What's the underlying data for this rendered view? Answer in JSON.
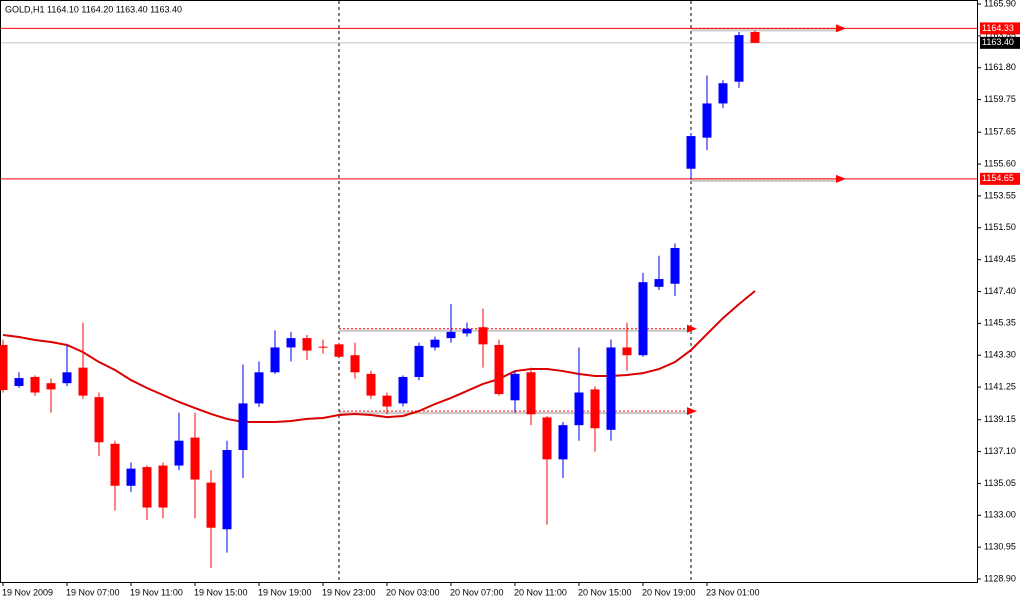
{
  "chart_data": {
    "type": "candlestick",
    "title": "GOLD,H1  1164.10 1164.20 1163.40 1163.40",
    "categories": [
      "19 Nov 2009",
      null,
      null,
      null,
      "19 Nov 07:00",
      null,
      null,
      null,
      "19 Nov 11:00",
      null,
      null,
      null,
      "19 Nov 15:00",
      null,
      null,
      null,
      "19 Nov 19:00",
      null,
      null,
      null,
      "19 Nov 23:00",
      null,
      null,
      null,
      "20 Nov 03:00",
      null,
      null,
      null,
      "20 Nov 07:00",
      null,
      null,
      null,
      "20 Nov 11:00",
      null,
      null,
      null,
      "20 Nov 15:00",
      null,
      null,
      null,
      "20 Nov 19:00",
      null,
      null,
      null,
      "23 Nov 01:00",
      null,
      null,
      null
    ],
    "open": [
      1143.96,
      1141.32,
      1141.9,
      1141.5,
      1141.5,
      1142.5,
      1140.6,
      1137.6,
      1134.9,
      1136.1,
      1136.2,
      1136.2,
      1138.0,
      1135.1,
      1132.1,
      1137.2,
      1140.2,
      1142.2,
      1143.8,
      1144.4,
      1143.85,
      1144.0,
      1143.3,
      1142.1,
      1140.7,
      1140.2,
      1141.9,
      1143.8,
      1144.4,
      1144.7,
      1145.1,
      1143.96,
      1140.4,
      1142.2,
      1139.3,
      1136.6,
      1138.8,
      1141.1,
      1138.5,
      1143.8,
      1143.3,
      1147.7,
      1147.9,
      1155.3,
      1157.3,
      1159.5,
      1160.9,
      1164.1
    ],
    "high": [
      1144.3,
      1142.2,
      1142.0,
      1141.8,
      1143.96,
      1145.4,
      1140.9,
      1137.8,
      1136.4,
      1136.2,
      1136.4,
      1139.6,
      1139.6,
      1135.9,
      1137.8,
      1142.7,
      1142.9,
      1144.9,
      1144.8,
      1144.6,
      1144.3,
      1144.1,
      1144.1,
      1142.3,
      1140.9,
      1142.0,
      1144.1,
      1144.5,
      1146.6,
      1145.4,
      1146.3,
      1144.3,
      1142.3,
      1142.5,
      1139.4,
      1139.0,
      1143.8,
      1141.3,
      1144.3,
      1145.4,
      1148.6,
      1149.7,
      1150.5,
      1157.6,
      1161.3,
      1161.0,
      1164.1,
      1164.2
    ],
    "low": [
      1140.9,
      1141.2,
      1140.7,
      1139.6,
      1141.3,
      1140.5,
      1136.8,
      1133.3,
      1134.5,
      1132.7,
      1132.8,
      1135.9,
      1132.8,
      1129.6,
      1130.6,
      1135.4,
      1139.97,
      1142.1,
      1142.9,
      1143.0,
      1143.4,
      1143.2,
      1141.8,
      1140.5,
      1139.5,
      1140.0,
      1141.7,
      1143.6,
      1144.1,
      1144.5,
      1142.5,
      1140.7,
      1139.6,
      1138.8,
      1132.4,
      1135.4,
      1137.8,
      1137.1,
      1137.8,
      1142.3,
      1143.2,
      1147.5,
      1147.1,
      1154.6,
      1156.5,
      1159.2,
      1160.5,
      1163.4
    ],
    "close": [
      1141.06,
      1141.83,
      1140.9,
      1141.1,
      1142.2,
      1140.7,
      1137.7,
      1134.9,
      1136.0,
      1133.5,
      1133.5,
      1137.8,
      1135.3,
      1132.2,
      1137.2,
      1140.2,
      1142.2,
      1143.8,
      1144.4,
      1143.6,
      1143.8,
      1143.2,
      1142.2,
      1140.7,
      1140.0,
      1141.9,
      1143.9,
      1144.3,
      1144.8,
      1145.0,
      1144.0,
      1140.8,
      1142.1,
      1139.5,
      1136.6,
      1138.8,
      1140.9,
      1138.6,
      1143.8,
      1143.3,
      1148.0,
      1148.2,
      1150.2,
      1157.4,
      1159.5,
      1160.8,
      1163.9,
      1163.4
    ],
    "up_color": "#0000ff",
    "down_color": "#ff0000",
    "ma": {
      "color": "#dd0000",
      "values": [
        1144.6,
        1144.47,
        1144.28,
        1144.15,
        1143.96,
        1143.5,
        1142.86,
        1142.35,
        1141.7,
        1141.19,
        1140.74,
        1140.29,
        1139.9,
        1139.52,
        1139.2,
        1139.0,
        1139.0,
        1139.0,
        1139.07,
        1139.2,
        1139.26,
        1139.45,
        1139.52,
        1139.45,
        1139.32,
        1139.39,
        1139.71,
        1140.16,
        1140.55,
        1141.0,
        1141.45,
        1141.77,
        1142.28,
        1142.41,
        1142.41,
        1142.28,
        1142.09,
        1141.96,
        1141.96,
        1142.03,
        1142.15,
        1142.41,
        1142.86,
        1143.63,
        1144.66,
        1145.69,
        1146.59,
        1147.43
      ]
    },
    "levels": {
      "values": [
        1164.33,
        1163.4,
        1154.65
      ],
      "value_labels": [
        "1164.33",
        "1163.40",
        "1154.65"
      ],
      "colors": [
        "#ff0000",
        "#c0c0c0",
        "#ff0000"
      ]
    },
    "arrows": {
      "values": [
        1164.33,
        1154.65,
        1145.0,
        1139.7
      ],
      "color": "#ff0000"
    },
    "ylim": [
      1128.9,
      1165.9
    ],
    "yticks": [
      {
        "value": 1165.9,
        "label": "1165.90"
      },
      {
        "value": 1163.85,
        "label": "1163.85"
      },
      {
        "value": 1161.8,
        "label": "1161.80"
      },
      {
        "value": 1159.75,
        "label": "1159.75"
      },
      {
        "value": 1157.65,
        "label": "1157.65"
      },
      {
        "value": 1155.6,
        "label": "1155.60"
      },
      {
        "value": 1153.55,
        "label": "1153.55"
      },
      {
        "value": 1151.5,
        "label": "1151.50"
      },
      {
        "value": 1149.45,
        "label": "1149.45"
      },
      {
        "value": 1147.4,
        "label": "1147.40"
      },
      {
        "value": 1145.35,
        "label": "1145.35"
      },
      {
        "value": 1143.3,
        "label": "1143.30"
      },
      {
        "value": 1141.25,
        "label": "1141.25"
      },
      {
        "value": 1139.15,
        "label": "1139.15"
      },
      {
        "value": 1137.1,
        "label": "1137.10"
      },
      {
        "value": 1135.05,
        "label": "1135.05"
      },
      {
        "value": 1133.0,
        "label": "1133.00"
      },
      {
        "value": 1130.95,
        "label": "1130.95"
      },
      {
        "value": 1128.9,
        "label": "1128.90"
      }
    ]
  }
}
